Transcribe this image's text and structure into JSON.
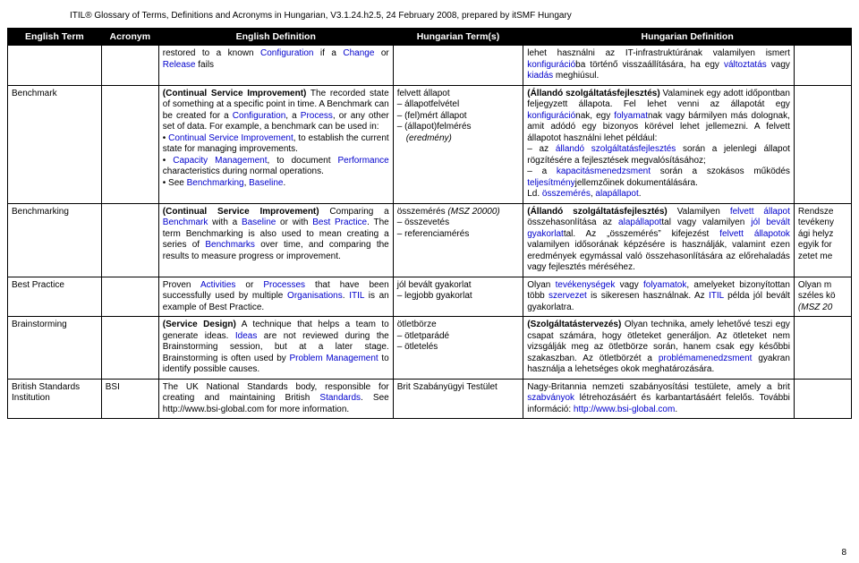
{
  "header": {
    "title": "ITIL® Glossary of Terms, Definitions and Acronyms in Hungarian, V3.1.24.h2.5, 24 February 2008, prepared by itSMF Hungary"
  },
  "columns": {
    "c1": "English Term",
    "c2": "Acronym",
    "c3": "English Definition",
    "c4": "Hungarian Term(s)",
    "c5": "Hungarian Definition"
  },
  "rows": {
    "r0": {
      "endef_pre": "restored to a known ",
      "endef_l1": "Configuration",
      "endef_mid": " if a ",
      "endef_l2": "Change",
      "endef_mid2": " or ",
      "endef_l3": "Release",
      "endef_post": " fails",
      "hudef_pre": "lehet használni az IT-infrastruktúrának valamilyen ismert ",
      "hudef_l1": "konfiguráció",
      "hudef_mid": "ba történő visszaállítására, ha egy ",
      "hudef_l2": "változtatás",
      "hudef_mid2": " vagy ",
      "hudef_l3": "kiadás",
      "hudef_post": " meghiúsul."
    },
    "r1": {
      "term": "Benchmark",
      "hun1": "felvett állapot",
      "hun2": "állapotfelvétel",
      "hun3": "(fel)mért állapot",
      "hun4a": "(állapot)felmérés ",
      "hun4i": "(eredmény)"
    },
    "r2": {
      "term": "Benchmarking",
      "hun1a": "összemérés ",
      "hun1i": "(MSZ 20000)",
      "hun2": "összevetés",
      "hun3": "referenciamérés",
      "extra": "Rendsze tevékeny ági helyz egyik for zetet me"
    },
    "r3": {
      "term": "Best Practice",
      "hun1": "jól bevált gyakorlat",
      "hun2": "legjobb gyakorlat",
      "extra": "Olyan m széles kö (MSZ 20"
    },
    "r4": {
      "term": "Brainstorming",
      "hun1": "ötletbörze",
      "hun2": "ötletparádé",
      "hun3": "ötletelés"
    },
    "r5": {
      "term": "British Standards Institution",
      "acr": "BSI",
      "hun": "Brit Szabányügyi Testület"
    }
  },
  "pagenum": "8"
}
